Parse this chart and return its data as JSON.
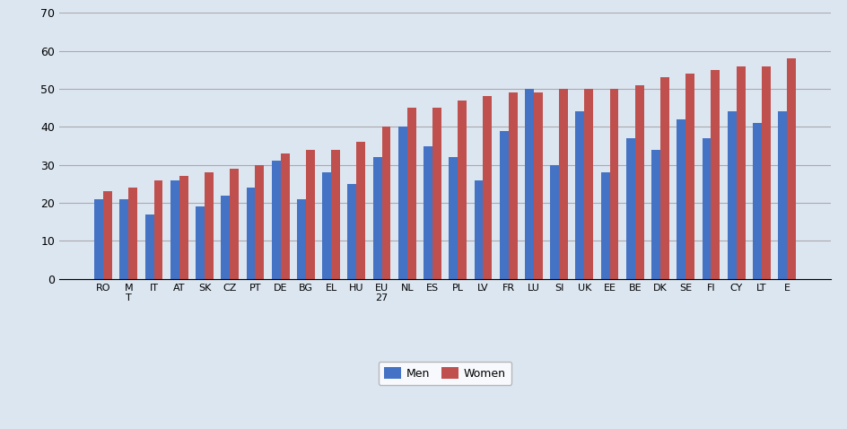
{
  "categories": [
    "RO",
    "M\nT",
    "IT",
    "AT",
    "SK",
    "CZ",
    "PT",
    "DE",
    "BG",
    "EL",
    "HU",
    "EU\n27",
    "NL",
    "ES",
    "PL",
    "LV",
    "FR",
    "LU",
    "SI",
    "UK",
    "EE",
    "BE",
    "DK",
    "SE",
    "FI",
    "CY",
    "LT",
    "E"
  ],
  "men": [
    21,
    21,
    17,
    26,
    19,
    22,
    24,
    31,
    21,
    28,
    25,
    32,
    40,
    35,
    32,
    26,
    39,
    50,
    30,
    44,
    28,
    37,
    34,
    42,
    37,
    44,
    41,
    44
  ],
  "women": [
    23,
    24,
    26,
    27,
    28,
    29,
    30,
    33,
    34,
    34,
    36,
    40,
    45,
    45,
    47,
    48,
    49,
    49,
    50,
    50,
    50,
    51,
    53,
    54,
    55,
    56,
    56,
    58
  ],
  "men_color": "#4472C4",
  "women_color": "#C0504D",
  "ylim": [
    0,
    70
  ],
  "yticks": [
    0,
    10,
    20,
    30,
    40,
    50,
    60,
    70
  ],
  "grid_color": "#AAAAAA",
  "bg_color": "#DCE6F1",
  "legend_men": "Men",
  "legend_women": "Women"
}
